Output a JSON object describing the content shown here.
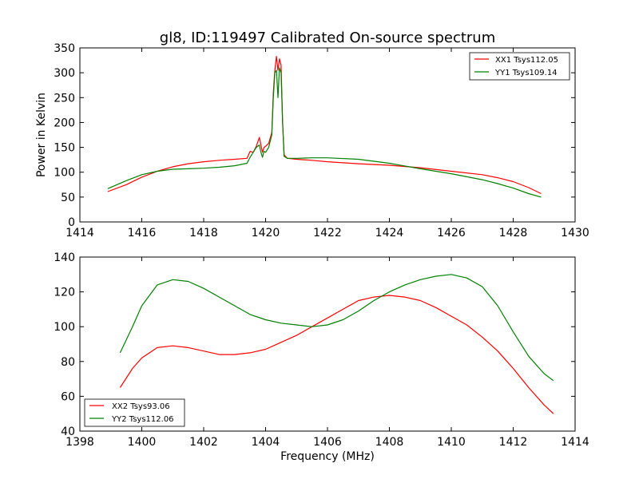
{
  "chart_data": [
    {
      "type": "line",
      "title": "gl8, ID:119497 Calibrated On-source spectrum",
      "xlabel": "",
      "ylabel": "Power in Kelvin",
      "xlim": [
        1414,
        1430
      ],
      "ylim": [
        0,
        350
      ],
      "xticks": [
        "1414",
        "1416",
        "1418",
        "1420",
        "1422",
        "1424",
        "1426",
        "1428",
        "1430"
      ],
      "yticks": [
        "0",
        "50",
        "100",
        "150",
        "200",
        "250",
        "300",
        "350"
      ],
      "legend_position": "top-right",
      "grid": false,
      "series": [
        {
          "name": "XX1 Tsys112.05",
          "color": "#ff0000",
          "x": [
            1414.9,
            1415.5,
            1416.0,
            1416.5,
            1417.0,
            1417.5,
            1418.0,
            1418.5,
            1419.0,
            1419.4,
            1419.5,
            1419.6,
            1419.7,
            1419.8,
            1419.85,
            1419.9,
            1419.95,
            1420.0,
            1420.1,
            1420.2,
            1420.25,
            1420.3,
            1420.35,
            1420.4,
            1420.45,
            1420.5,
            1420.55,
            1420.6,
            1420.7,
            1421.0,
            1421.5,
            1422.0,
            1423.0,
            1424.0,
            1425.0,
            1426.0,
            1427.0,
            1427.5,
            1428.0,
            1428.5,
            1428.9
          ],
          "values": [
            61,
            75,
            90,
            102,
            111,
            117,
            121,
            124,
            126,
            128,
            142,
            140,
            152,
            170,
            155,
            140,
            150,
            152,
            158,
            180,
            260,
            305,
            333,
            305,
            328,
            315,
            200,
            135,
            128,
            126,
            124,
            121,
            117,
            114,
            109,
            102,
            95,
            89,
            81,
            69,
            57
          ]
        },
        {
          "name": "YY1 Tsys109.14",
          "color": "#008000",
          "x": [
            1414.9,
            1415.5,
            1416.0,
            1416.5,
            1417.0,
            1417.5,
            1418.0,
            1418.5,
            1419.0,
            1419.4,
            1419.5,
            1419.6,
            1419.7,
            1419.8,
            1419.85,
            1419.9,
            1419.95,
            1420.0,
            1420.1,
            1420.2,
            1420.25,
            1420.3,
            1420.35,
            1420.4,
            1420.45,
            1420.5,
            1420.55,
            1420.6,
            1420.7,
            1421.0,
            1421.5,
            1422.0,
            1423.0,
            1424.0,
            1425.0,
            1426.0,
            1427.0,
            1427.5,
            1428.0,
            1428.5,
            1428.9
          ],
          "values": [
            67,
            83,
            95,
            102,
            106,
            107,
            108,
            110,
            113,
            118,
            130,
            140,
            150,
            155,
            140,
            130,
            142,
            140,
            150,
            175,
            250,
            300,
            305,
            250,
            310,
            300,
            200,
            132,
            128,
            128,
            129,
            129,
            126,
            118,
            107,
            97,
            85,
            77,
            68,
            57,
            50
          ]
        }
      ]
    },
    {
      "type": "line",
      "title": "",
      "xlabel": "Frequency (MHz)",
      "ylabel": "",
      "xlim": [
        1398,
        1414
      ],
      "ylim": [
        40,
        140
      ],
      "xticks": [
        "1398",
        "1400",
        "1402",
        "1404",
        "1406",
        "1408",
        "1410",
        "1412",
        "1414"
      ],
      "yticks": [
        "40",
        "60",
        "80",
        "100",
        "120",
        "140"
      ],
      "legend_position": "bottom-left",
      "grid": false,
      "series": [
        {
          "name": "XX2 Tsys93.06",
          "color": "#ff0000",
          "x": [
            1399.3,
            1399.7,
            1400.0,
            1400.5,
            1401.0,
            1401.5,
            1402.0,
            1402.5,
            1403.0,
            1403.5,
            1404.0,
            1404.5,
            1405.0,
            1405.5,
            1406.0,
            1406.5,
            1407.0,
            1407.5,
            1408.0,
            1408.5,
            1409.0,
            1409.5,
            1410.0,
            1410.5,
            1411.0,
            1411.5,
            1412.0,
            1412.5,
            1413.0,
            1413.3
          ],
          "values": [
            65,
            76,
            82,
            88,
            89,
            88,
            86,
            84,
            84,
            85,
            87,
            91,
            95,
            100,
            105,
            110,
            115,
            117,
            118,
            117,
            115,
            111,
            106,
            101,
            94,
            86,
            76,
            65,
            55,
            50
          ]
        },
        {
          "name": "YY2 Tsys112.06",
          "color": "#008000",
          "x": [
            1399.3,
            1399.7,
            1400.0,
            1400.5,
            1401.0,
            1401.5,
            1402.0,
            1402.5,
            1403.0,
            1403.5,
            1404.0,
            1404.5,
            1405.0,
            1405.5,
            1406.0,
            1406.5,
            1407.0,
            1407.5,
            1408.0,
            1408.5,
            1409.0,
            1409.5,
            1410.0,
            1410.5,
            1411.0,
            1411.5,
            1412.0,
            1412.5,
            1413.0,
            1413.3
          ],
          "values": [
            85,
            100,
            112,
            124,
            127,
            126,
            122,
            117,
            112,
            107,
            104,
            102,
            101,
            100,
            101,
            104,
            109,
            115,
            120,
            124,
            127,
            129,
            130,
            128,
            123,
            112,
            97,
            83,
            73,
            69
          ]
        }
      ]
    }
  ]
}
